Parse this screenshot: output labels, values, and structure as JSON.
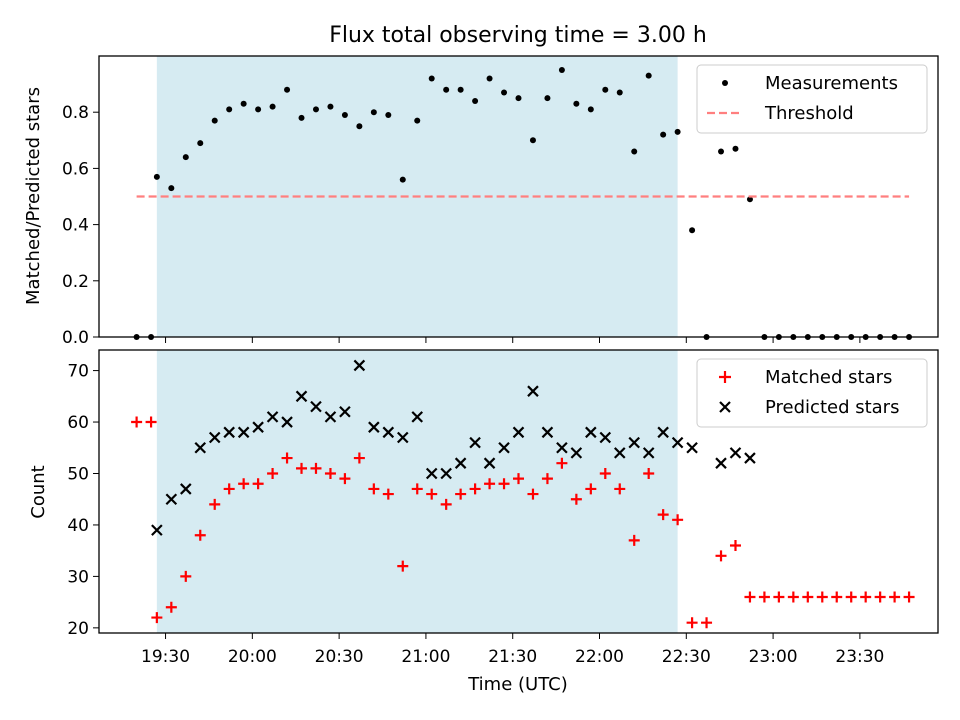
{
  "chart_data": [
    {
      "type": "scatter",
      "title": "Flux total observing time = 3.00 h",
      "xlabel": "",
      "ylabel": "Matched/Predicted stars",
      "xlim": [
        "19:07",
        "23:57"
      ],
      "ylim": [
        0,
        1.0
      ],
      "yticks": [
        "0.0",
        "0.2",
        "0.4",
        "0.6",
        "0.8"
      ],
      "legend_position": "top-right",
      "shaded_span": [
        "19:27",
        "22:27"
      ],
      "shade_color": "#add8e6",
      "series": [
        {
          "name": "Measurements",
          "color": "#000000",
          "marker": "dot",
          "points": [
            [
              "19:20",
              0.0
            ],
            [
              "19:25",
              0.0
            ],
            [
              "19:27",
              0.57
            ],
            [
              "19:32",
              0.53
            ],
            [
              "19:37",
              0.64
            ],
            [
              "19:42",
              0.69
            ],
            [
              "19:47",
              0.77
            ],
            [
              "19:52",
              0.81
            ],
            [
              "19:57",
              0.83
            ],
            [
              "20:02",
              0.81
            ],
            [
              "20:07",
              0.82
            ],
            [
              "20:12",
              0.88
            ],
            [
              "20:17",
              0.78
            ],
            [
              "20:22",
              0.81
            ],
            [
              "20:27",
              0.82
            ],
            [
              "20:32",
              0.79
            ],
            [
              "20:37",
              0.75
            ],
            [
              "20:42",
              0.8
            ],
            [
              "20:47",
              0.79
            ],
            [
              "20:52",
              0.56
            ],
            [
              "20:57",
              0.77
            ],
            [
              "21:02",
              0.92
            ],
            [
              "21:07",
              0.88
            ],
            [
              "21:12",
              0.88
            ],
            [
              "21:17",
              0.84
            ],
            [
              "21:22",
              0.92
            ],
            [
              "21:27",
              0.87
            ],
            [
              "21:32",
              0.85
            ],
            [
              "21:37",
              0.7
            ],
            [
              "21:42",
              0.85
            ],
            [
              "21:47",
              0.95
            ],
            [
              "21:52",
              0.83
            ],
            [
              "21:57",
              0.81
            ],
            [
              "22:02",
              0.88
            ],
            [
              "22:07",
              0.87
            ],
            [
              "22:12",
              0.66
            ],
            [
              "22:17",
              0.93
            ],
            [
              "22:22",
              0.72
            ],
            [
              "22:27",
              0.73
            ],
            [
              "22:32",
              0.38
            ],
            [
              "22:37",
              0.0
            ],
            [
              "22:42",
              0.66
            ],
            [
              "22:47",
              0.67
            ],
            [
              "22:52",
              0.49
            ],
            [
              "22:57",
              0.0
            ],
            [
              "23:02",
              0.0
            ],
            [
              "23:07",
              0.0
            ],
            [
              "23:12",
              0.0
            ],
            [
              "23:17",
              0.0
            ],
            [
              "23:22",
              0.0
            ],
            [
              "23:27",
              0.0
            ],
            [
              "23:32",
              0.0
            ],
            [
              "23:37",
              0.0
            ],
            [
              "23:42",
              0.0
            ],
            [
              "23:47",
              0.0
            ]
          ]
        },
        {
          "name": "Threshold",
          "color": "#ff7f7f",
          "style": "dashed",
          "points": [
            [
              "19:20",
              0.5
            ],
            [
              "23:47",
              0.5
            ]
          ]
        }
      ]
    },
    {
      "type": "scatter",
      "title": "",
      "xlabel": "Time (UTC)",
      "ylabel": "Count",
      "xlim": [
        "19:07",
        "23:57"
      ],
      "ylim": [
        19,
        74
      ],
      "yticks": [
        "20",
        "30",
        "40",
        "50",
        "60",
        "70"
      ],
      "xticks": [
        "19:30",
        "20:00",
        "20:30",
        "21:00",
        "21:30",
        "22:00",
        "22:30",
        "23:00",
        "23:30"
      ],
      "legend_position": "top-right",
      "shaded_span": [
        "19:27",
        "22:27"
      ],
      "shade_color": "#add8e6",
      "series": [
        {
          "name": "Matched stars",
          "color": "#ff0000",
          "marker": "plus",
          "points": [
            [
              "19:20",
              60
            ],
            [
              "19:25",
              60
            ],
            [
              "19:27",
              22
            ],
            [
              "19:32",
              24
            ],
            [
              "19:37",
              30
            ],
            [
              "19:42",
              38
            ],
            [
              "19:47",
              44
            ],
            [
              "19:52",
              47
            ],
            [
              "19:57",
              48
            ],
            [
              "20:02",
              48
            ],
            [
              "20:07",
              50
            ],
            [
              "20:12",
              53
            ],
            [
              "20:17",
              51
            ],
            [
              "20:22",
              51
            ],
            [
              "20:27",
              50
            ],
            [
              "20:32",
              49
            ],
            [
              "20:37",
              53
            ],
            [
              "20:42",
              47
            ],
            [
              "20:47",
              46
            ],
            [
              "20:52",
              32
            ],
            [
              "20:57",
              47
            ],
            [
              "21:02",
              46
            ],
            [
              "21:07",
              44
            ],
            [
              "21:12",
              46
            ],
            [
              "21:17",
              47
            ],
            [
              "21:22",
              48
            ],
            [
              "21:27",
              48
            ],
            [
              "21:32",
              49
            ],
            [
              "21:37",
              46
            ],
            [
              "21:42",
              49
            ],
            [
              "21:47",
              52
            ],
            [
              "21:52",
              45
            ],
            [
              "21:57",
              47
            ],
            [
              "22:02",
              50
            ],
            [
              "22:07",
              47
            ],
            [
              "22:12",
              37
            ],
            [
              "22:17",
              50
            ],
            [
              "22:22",
              42
            ],
            [
              "22:27",
              41
            ],
            [
              "22:32",
              21
            ],
            [
              "22:37",
              21
            ],
            [
              "22:42",
              34
            ],
            [
              "22:47",
              36
            ],
            [
              "22:52",
              26
            ],
            [
              "22:57",
              26
            ],
            [
              "23:02",
              26
            ],
            [
              "23:07",
              26
            ],
            [
              "23:12",
              26
            ],
            [
              "23:17",
              26
            ],
            [
              "23:22",
              26
            ],
            [
              "23:27",
              26
            ],
            [
              "23:32",
              26
            ],
            [
              "23:37",
              26
            ],
            [
              "23:42",
              26
            ],
            [
              "23:47",
              26
            ]
          ]
        },
        {
          "name": "Predicted stars",
          "color": "#000000",
          "marker": "x",
          "points": [
            [
              "19:27",
              39
            ],
            [
              "19:32",
              45
            ],
            [
              "19:37",
              47
            ],
            [
              "19:42",
              55
            ],
            [
              "19:47",
              57
            ],
            [
              "19:52",
              58
            ],
            [
              "19:57",
              58
            ],
            [
              "20:02",
              59
            ],
            [
              "20:07",
              61
            ],
            [
              "20:12",
              60
            ],
            [
              "20:17",
              65
            ],
            [
              "20:22",
              63
            ],
            [
              "20:27",
              61
            ],
            [
              "20:32",
              62
            ],
            [
              "20:37",
              71
            ],
            [
              "20:42",
              59
            ],
            [
              "20:47",
              58
            ],
            [
              "20:52",
              57
            ],
            [
              "20:57",
              61
            ],
            [
              "21:02",
              50
            ],
            [
              "21:07",
              50
            ],
            [
              "21:12",
              52
            ],
            [
              "21:17",
              56
            ],
            [
              "21:22",
              52
            ],
            [
              "21:27",
              55
            ],
            [
              "21:32",
              58
            ],
            [
              "21:37",
              66
            ],
            [
              "21:42",
              58
            ],
            [
              "21:47",
              55
            ],
            [
              "21:52",
              54
            ],
            [
              "21:57",
              58
            ],
            [
              "22:02",
              57
            ],
            [
              "22:07",
              54
            ],
            [
              "22:12",
              56
            ],
            [
              "22:17",
              54
            ],
            [
              "22:22",
              58
            ],
            [
              "22:27",
              56
            ],
            [
              "22:32",
              55
            ],
            [
              "22:42",
              52
            ],
            [
              "22:47",
              54
            ],
            [
              "22:52",
              53
            ]
          ]
        }
      ]
    }
  ]
}
